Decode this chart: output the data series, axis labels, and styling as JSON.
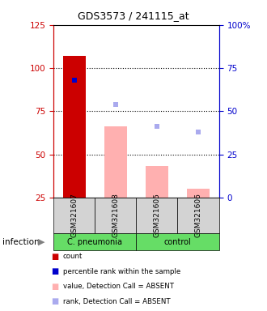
{
  "title": "GDS3573 / 241115_at",
  "samples": [
    "GSM321607",
    "GSM321608",
    "GSM321605",
    "GSM321606"
  ],
  "left_ylim": [
    25,
    125
  ],
  "left_yticks": [
    25,
    50,
    75,
    100,
    125
  ],
  "right_ylim": [
    0,
    100
  ],
  "right_yticks": [
    0,
    25,
    50,
    75,
    100
  ],
  "right_yticklabels": [
    "0",
    "25",
    "50",
    "75",
    "100%"
  ],
  "count_bars": [
    107,
    null,
    null,
    null
  ],
  "count_color": "#cc0000",
  "value_absent_bars": [
    null,
    66,
    43,
    30
  ],
  "value_absent_color": "#ffb0b0",
  "percentile_present_dots_left": [
    93,
    null,
    null,
    null
  ],
  "percentile_present_color": "#0000cc",
  "rank_absent_dots_left": [
    null,
    79,
    66,
    63
  ],
  "rank_absent_color": "#aaaaee",
  "dotted_lines": [
    50,
    75,
    100
  ],
  "bar_bottom": 25,
  "group_label_cpneumonia": "C. pneumonia",
  "group_label_control": "control",
  "infection_label": "infection",
  "legend_items": [
    {
      "color": "#cc0000",
      "label": "count"
    },
    {
      "color": "#0000cc",
      "label": "percentile rank within the sample"
    },
    {
      "color": "#ffb0b0",
      "label": "value, Detection Call = ABSENT"
    },
    {
      "color": "#aaaaee",
      "label": "rank, Detection Call = ABSENT"
    }
  ],
  "left_axis_color": "#cc0000",
  "right_axis_color": "#0000cc",
  "background_color": "#ffffff",
  "gray_bg_color": "#d3d3d3",
  "green_bg_color": "#66dd66"
}
